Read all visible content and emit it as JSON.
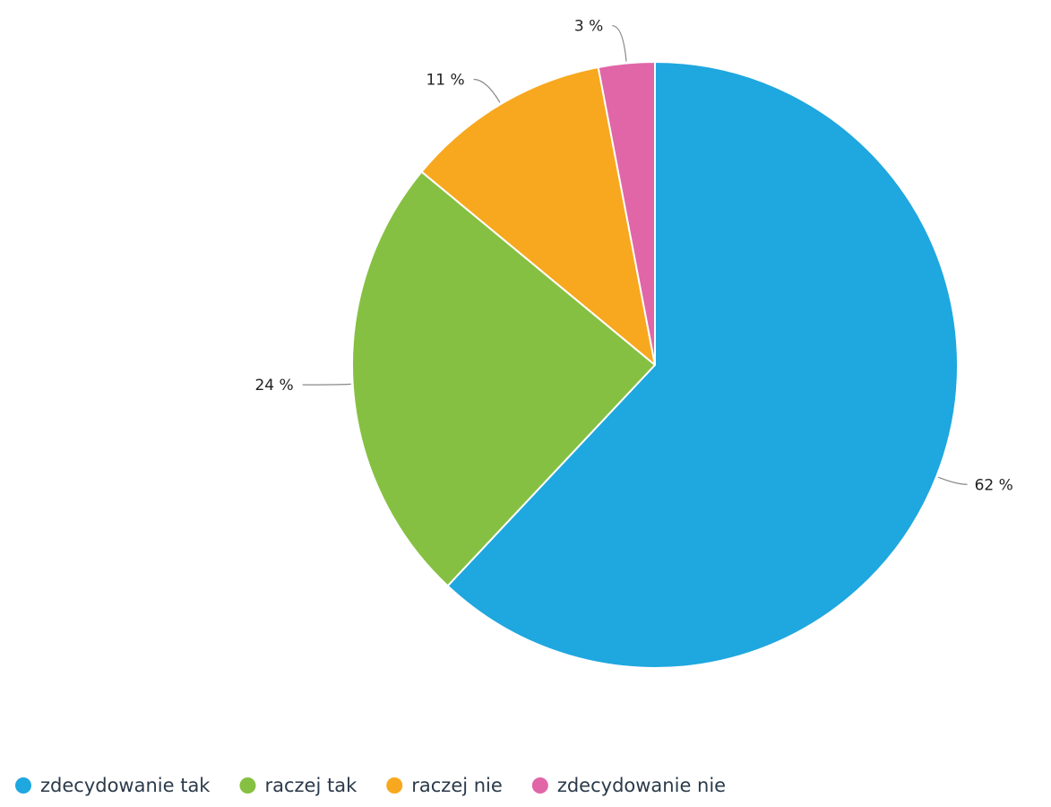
{
  "chart_data": {
    "type": "pie",
    "slices": [
      {
        "label": "zdecydowanie tak",
        "value": 62,
        "value_label": "62 %",
        "color": "#1fa7df"
      },
      {
        "label": "raczej tak",
        "value": 24,
        "value_label": "24 %",
        "color": "#86c042"
      },
      {
        "label": "raczej nie",
        "value": 11,
        "value_label": "11 %",
        "color": "#f8a81f"
      },
      {
        "label": "zdecydowanie nie",
        "value": 3,
        "value_label": "3 %",
        "color": "#e066a8"
      }
    ],
    "start_angle_deg": 0,
    "direction": "clockwise",
    "legend_position": "bottom-left",
    "data_labels": "outside-with-connectors"
  }
}
